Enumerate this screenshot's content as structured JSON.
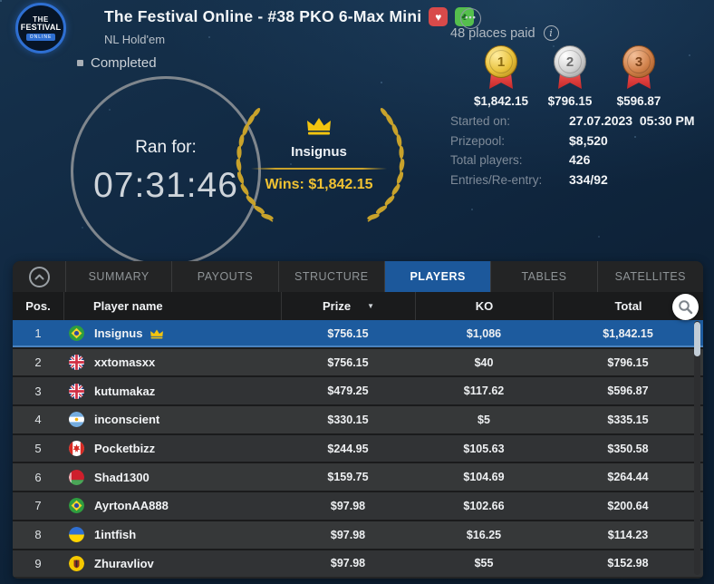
{
  "header": {
    "logo": {
      "line1": "THE",
      "line2": "FESTIVAL",
      "line3": "ONLINE"
    },
    "title": "The Festival Online - #38 PKO 6-Max Mini",
    "subtitle": "NL Hold'em",
    "heart_badge_glyph": "♥",
    "clubs_badge_glyph": "♣",
    "more_glyph": "•••",
    "status": "Completed"
  },
  "timer": {
    "label": "Ran for:",
    "value": "07:31:46"
  },
  "winner": {
    "name": "Insignus",
    "wins_label": "Wins:",
    "wins_amount": "$1,842.15"
  },
  "payout_summary": {
    "places_paid": "48 places paid",
    "medals": [
      {
        "rank": "1",
        "tier": "gold",
        "prize": "$1,842.15"
      },
      {
        "rank": "2",
        "tier": "silver",
        "prize": "$796.15"
      },
      {
        "rank": "3",
        "tier": "bronze",
        "prize": "$596.87"
      }
    ]
  },
  "info_rows": [
    {
      "label": "Started on:",
      "value": "27.07.2023  05:30 PM"
    },
    {
      "label": "Prizepool:",
      "value": "$8,520"
    },
    {
      "label": "Total players:",
      "value": "426"
    },
    {
      "label": "Entries/Re-entry:",
      "value": "334/92"
    }
  ],
  "tabs": [
    {
      "label": "SUMMARY",
      "active": false
    },
    {
      "label": "PAYOUTS",
      "active": false
    },
    {
      "label": "STRUCTURE",
      "active": false
    },
    {
      "label": "PLAYERS",
      "active": true
    },
    {
      "label": "TABLES",
      "active": false
    },
    {
      "label": "SATELLITES",
      "active": false
    }
  ],
  "table": {
    "columns": {
      "pos": "Pos.",
      "player": "Player name",
      "prize": "Prize",
      "ko": "KO",
      "total": "Total"
    },
    "rows": [
      {
        "pos": "1",
        "flag": "br",
        "name": "Insignus",
        "crown": true,
        "prize": "$756.15",
        "ko": "$1,086",
        "total": "$1,842.15",
        "highlight": true
      },
      {
        "pos": "2",
        "flag": "gb",
        "name": "xxtomasxx",
        "crown": false,
        "prize": "$756.15",
        "ko": "$40",
        "total": "$796.15",
        "highlight": false
      },
      {
        "pos": "3",
        "flag": "gb",
        "name": "kutumakaz",
        "crown": false,
        "prize": "$479.25",
        "ko": "$117.62",
        "total": "$596.87",
        "highlight": false
      },
      {
        "pos": "4",
        "flag": "ar",
        "name": "inconscient",
        "crown": false,
        "prize": "$330.15",
        "ko": "$5",
        "total": "$335.15",
        "highlight": false
      },
      {
        "pos": "5",
        "flag": "ca",
        "name": "Pocketbizz",
        "crown": false,
        "prize": "$244.95",
        "ko": "$105.63",
        "total": "$350.58",
        "highlight": false
      },
      {
        "pos": "6",
        "flag": "by",
        "name": "Shad1300",
        "crown": false,
        "prize": "$159.75",
        "ko": "$104.69",
        "total": "$264.44",
        "highlight": false
      },
      {
        "pos": "7",
        "flag": "br",
        "name": "AyrtonAA888",
        "crown": false,
        "prize": "$97.98",
        "ko": "$102.66",
        "total": "$200.64",
        "highlight": false
      },
      {
        "pos": "8",
        "flag": "ua",
        "name": "1intfish",
        "crown": false,
        "prize": "$97.98",
        "ko": "$16.25",
        "total": "$114.23",
        "highlight": false
      },
      {
        "pos": "9",
        "flag": "uacrest",
        "name": "Zhuravliov",
        "crown": false,
        "prize": "$97.98",
        "ko": "$55",
        "total": "$152.98",
        "highlight": false
      }
    ]
  },
  "colors": {
    "accent_blue": "#1c589b",
    "row_highlight": "#1d5b9e",
    "gold_text": "#f1c232",
    "laurel_gold": "#c8a22b",
    "medal_ribbon_red": "#c62828",
    "bg_navy": "#0e2336",
    "panel_bg": "#232425"
  }
}
